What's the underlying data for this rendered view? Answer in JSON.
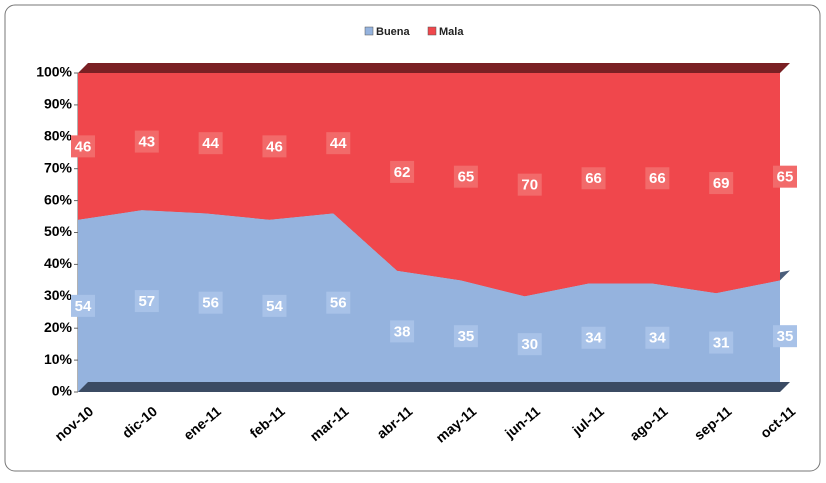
{
  "chart_data": {
    "type": "stacked_area_100",
    "categories": [
      "nov-10",
      "dic-10",
      "ene-11",
      "feb-11",
      "mar-11",
      "abr-11",
      "may-11",
      "jun-11",
      "jul-11",
      "ago-11",
      "sep-11",
      "oct-11"
    ],
    "series": [
      {
        "name": "Buena",
        "color": "#95b3de",
        "values": [
          54,
          57,
          56,
          54,
          56,
          38,
          35,
          30,
          34,
          34,
          31,
          35
        ]
      },
      {
        "name": "Mala",
        "color": "#f0474c",
        "values": [
          46,
          43,
          44,
          46,
          44,
          62,
          65,
          70,
          66,
          66,
          69,
          65
        ]
      }
    ],
    "ylim": [
      0,
      100
    ],
    "yticks": [
      {
        "value": 0,
        "label": "0%"
      },
      {
        "value": 10,
        "label": "10%"
      },
      {
        "value": 20,
        "label": "20%"
      },
      {
        "value": 30,
        "label": "30%"
      },
      {
        "value": 40,
        "label": "40%"
      },
      {
        "value": 50,
        "label": "50%"
      },
      {
        "value": 60,
        "label": "60%"
      },
      {
        "value": 70,
        "label": "70%"
      },
      {
        "value": 80,
        "label": "80%"
      },
      {
        "value": 90,
        "label": "90%"
      },
      {
        "value": 100,
        "label": "100%"
      }
    ],
    "legend": "top",
    "grid": false
  }
}
